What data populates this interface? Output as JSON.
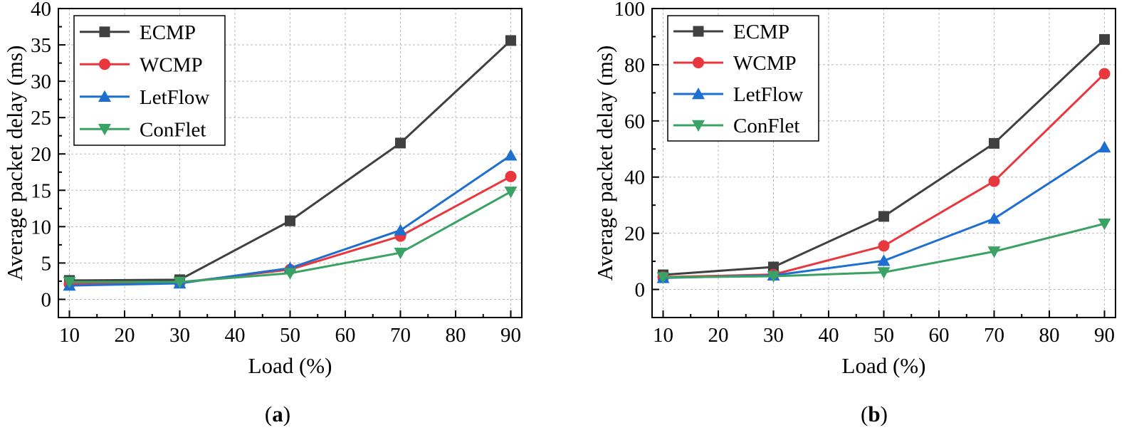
{
  "chart_data": [
    {
      "type": "line",
      "panel_label": "(a)",
      "panel_label_letter": "a",
      "xlabel": "Load (%)",
      "ylabel": "Average packet delay (ms)",
      "x": [
        10,
        30,
        50,
        70,
        90
      ],
      "xlim": [
        8,
        92
      ],
      "ylim": [
        -2.5,
        40
      ],
      "xticks": [
        "10",
        "20",
        "30",
        "40",
        "50",
        "60",
        "70",
        "80",
        "90"
      ],
      "yticks": [
        "0",
        "5",
        "10",
        "15",
        "20",
        "25",
        "30",
        "35",
        "40"
      ],
      "grid": true,
      "legend_position": "top-left",
      "series": [
        {
          "name": "ECMP",
          "color": "#404040",
          "marker": "square",
          "values": [
            2.6,
            2.7,
            10.8,
            21.5,
            35.6
          ]
        },
        {
          "name": "WCMP",
          "color": "#e8383d",
          "marker": "circle",
          "values": [
            2.1,
            2.3,
            4.1,
            8.7,
            16.9
          ]
        },
        {
          "name": "LetFlow",
          "color": "#1f6fd1",
          "marker": "triangle-up",
          "values": [
            1.9,
            2.2,
            4.3,
            9.5,
            19.8
          ]
        },
        {
          "name": "ConFlet",
          "color": "#3aa264",
          "marker": "triangle-down",
          "values": [
            2.4,
            2.4,
            3.6,
            6.4,
            14.8
          ]
        }
      ]
    },
    {
      "type": "line",
      "panel_label": "(b)",
      "panel_label_letter": "b",
      "xlabel": "Load (%)",
      "ylabel": "Average packet delay (ms)",
      "x": [
        10,
        30,
        50,
        70,
        90
      ],
      "xlim": [
        8,
        92
      ],
      "ylim": [
        -10,
        100
      ],
      "xticks": [
        "10",
        "20",
        "30",
        "40",
        "50",
        "60",
        "70",
        "80",
        "90"
      ],
      "yticks": [
        "0",
        "20",
        "40",
        "60",
        "80",
        "100"
      ],
      "grid": true,
      "legend_position": "top-left",
      "series": [
        {
          "name": "ECMP",
          "color": "#404040",
          "marker": "square",
          "values": [
            5.2,
            8.0,
            26.0,
            52.0,
            89.0
          ]
        },
        {
          "name": "WCMP",
          "color": "#e8383d",
          "marker": "circle",
          "values": [
            4.4,
            5.3,
            15.5,
            38.5,
            76.8
          ]
        },
        {
          "name": "LetFlow",
          "color": "#1f6fd1",
          "marker": "triangle-up",
          "values": [
            4.1,
            5.0,
            10.2,
            25.2,
            50.6
          ]
        },
        {
          "name": "ConFlet",
          "color": "#3aa264",
          "marker": "triangle-down",
          "values": [
            4.3,
            4.7,
            6.1,
            13.5,
            23.4
          ]
        }
      ]
    }
  ]
}
